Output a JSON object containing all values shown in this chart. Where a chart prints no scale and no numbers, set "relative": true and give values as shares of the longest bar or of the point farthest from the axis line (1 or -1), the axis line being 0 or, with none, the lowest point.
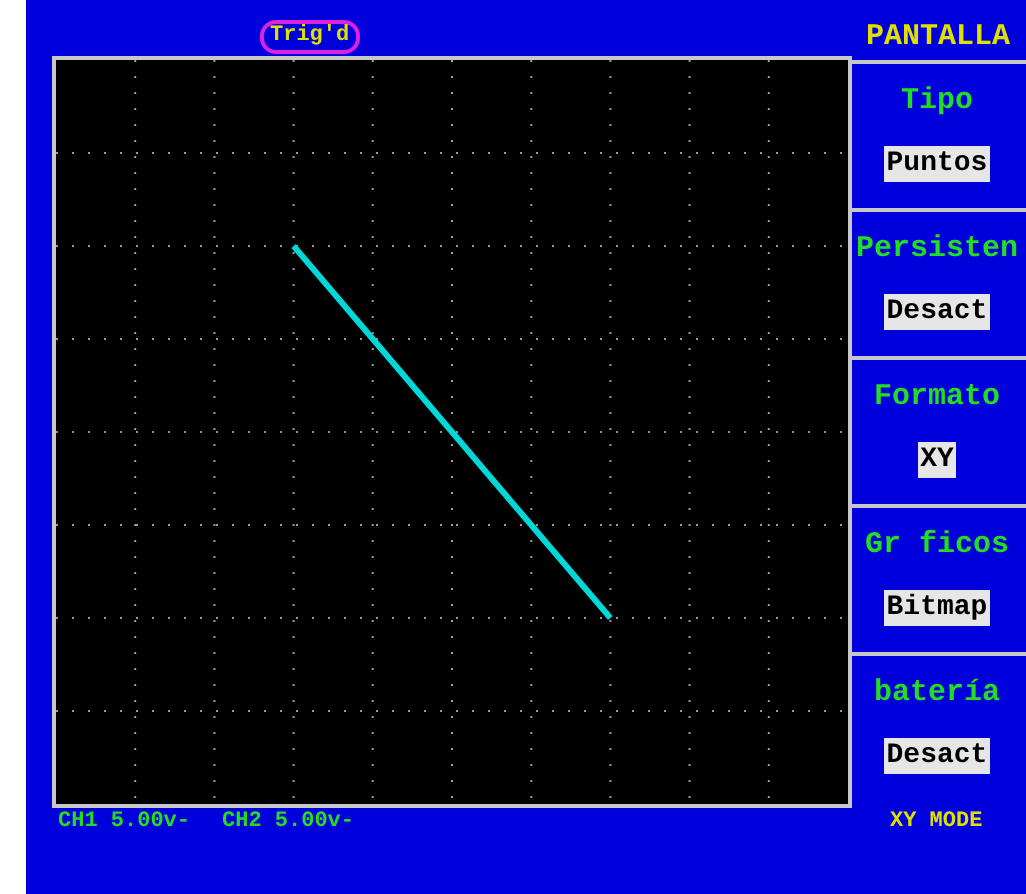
{
  "chart_data": {
    "type": "line",
    "relative": true,
    "categories": [
      null,
      null,
      null
    ],
    "series": [
      {
        "color": "#00d8d8",
        "values": [
          1,
          0,
          -1
        ]
      }
    ],
    "marker": "none",
    "line_style": "solid",
    "grid": true,
    "annotations": [
      "Trig'd",
      "PANTALLA",
      "Tipo",
      "Puntos",
      "Persisten",
      "Desact",
      "Formato",
      "XY",
      "Gr ficos",
      "Bitmap",
      "batería",
      "Desact",
      "CH1 5.00v-",
      "CH2 5.00v-",
      "XY MODE"
    ]
  }
}
